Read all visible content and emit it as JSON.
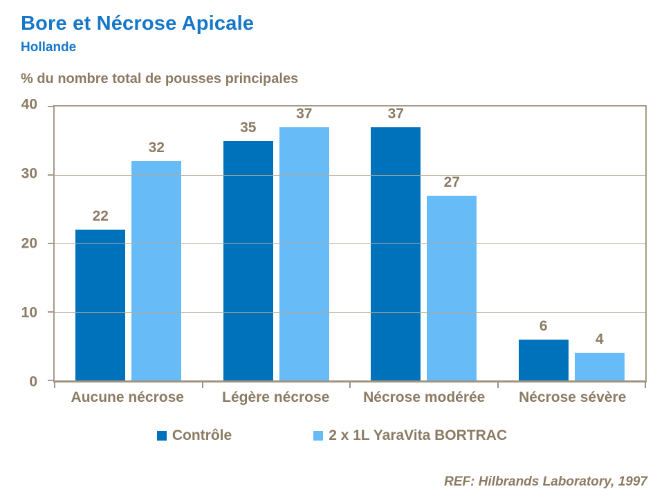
{
  "header": {
    "title": "Bore et Nécrose Apicale",
    "subtitle": "Hollande"
  },
  "axis_title": "%  du nombre total de pousses principales",
  "footer": {
    "reference": "REF: Hilbrands Laboratory, 1997"
  },
  "colors": {
    "title_blue": "#1577C8",
    "text_brown": "#8C7B63",
    "series_control": "#0072BC",
    "series_bortrac": "#67BCF8",
    "axis_line": "#A0937F",
    "gridline": "#B5A997"
  },
  "chart_data": {
    "type": "bar",
    "title": "Bore et Nécrose Apicale",
    "subtitle": "Hollande",
    "ylabel": "%  du nombre total de pousses principales",
    "xlabel": "",
    "ylim": [
      0,
      40
    ],
    "yticks": [
      0,
      10,
      20,
      30,
      40
    ],
    "grid": true,
    "legend_position": "bottom",
    "categories": [
      "Aucune nécrose",
      "Légère nécrose",
      "Nécrose modérée",
      "Nécrose sévère"
    ],
    "series": [
      {
        "name": "Contrôle",
        "color": "#0072BC",
        "values": [
          22,
          35,
          37,
          6
        ]
      },
      {
        "name": "2 x 1L YaraVita BORTRAC",
        "color": "#67BCF8",
        "values": [
          32,
          37,
          27,
          4
        ]
      }
    ]
  }
}
